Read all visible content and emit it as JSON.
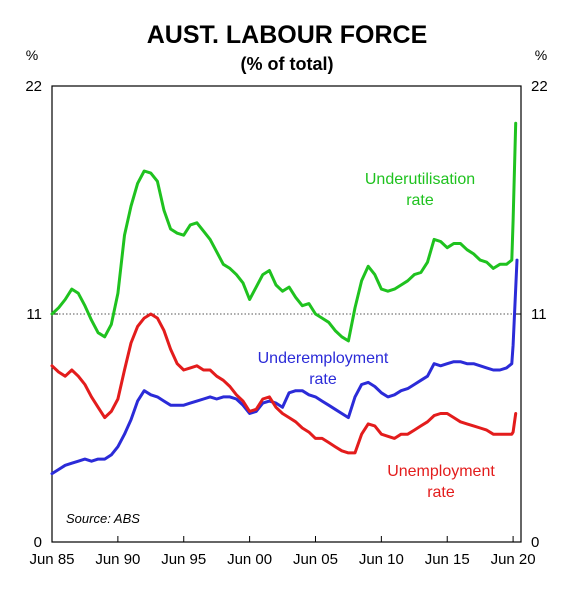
{
  "chart_data": {
    "type": "line",
    "title": "AUST. LABOUR FORCE",
    "subtitle": "(% of total)",
    "y_unit_left": "%",
    "y_unit_right": "%",
    "ylim": [
      0,
      22
    ],
    "yticks": [
      0,
      11,
      22
    ],
    "y_tick_labels": [
      "0",
      "11",
      "22"
    ],
    "xlim": [
      1985.0,
      2020.6
    ],
    "xticks": [
      1985,
      1990,
      1995,
      2000,
      2005,
      2010,
      2015,
      2020
    ],
    "x_tick_labels": [
      "Jun 85",
      "Jun 90",
      "Jun 95",
      "Jun 00",
      "Jun 05",
      "Jun 10",
      "Jun 15",
      "Jun 20"
    ],
    "reference_line": {
      "y": 11,
      "style": "dotted"
    },
    "source": "Source: ABS",
    "grid": false,
    "series": [
      {
        "name": "Underutilisation rate",
        "label_lines": [
          "Underutilisation",
          "rate"
        ],
        "color": "#1fc21f",
        "points": [
          [
            1985.0,
            11.0
          ],
          [
            1985.5,
            11.3
          ],
          [
            1986.0,
            11.7
          ],
          [
            1986.5,
            12.2
          ],
          [
            1987.0,
            12.0
          ],
          [
            1987.5,
            11.4
          ],
          [
            1988.0,
            10.7
          ],
          [
            1988.5,
            10.1
          ],
          [
            1989.0,
            9.9
          ],
          [
            1989.5,
            10.5
          ],
          [
            1990.0,
            12.0
          ],
          [
            1990.5,
            14.8
          ],
          [
            1991.0,
            16.2
          ],
          [
            1991.5,
            17.3
          ],
          [
            1992.0,
            17.9
          ],
          [
            1992.5,
            17.8
          ],
          [
            1993.0,
            17.4
          ],
          [
            1993.5,
            16.0
          ],
          [
            1994.0,
            15.1
          ],
          [
            1994.5,
            14.9
          ],
          [
            1995.0,
            14.8
          ],
          [
            1995.5,
            15.3
          ],
          [
            1996.0,
            15.4
          ],
          [
            1996.5,
            15.0
          ],
          [
            1997.0,
            14.6
          ],
          [
            1997.5,
            14.0
          ],
          [
            1998.0,
            13.4
          ],
          [
            1998.5,
            13.2
          ],
          [
            1999.0,
            12.9
          ],
          [
            1999.5,
            12.5
          ],
          [
            2000.0,
            11.7
          ],
          [
            2000.5,
            12.3
          ],
          [
            2001.0,
            12.9
          ],
          [
            2001.5,
            13.1
          ],
          [
            2002.0,
            12.4
          ],
          [
            2002.5,
            12.1
          ],
          [
            2003.0,
            12.3
          ],
          [
            2003.5,
            11.8
          ],
          [
            2004.0,
            11.4
          ],
          [
            2004.5,
            11.5
          ],
          [
            2005.0,
            11.0
          ],
          [
            2005.5,
            10.8
          ],
          [
            2006.0,
            10.6
          ],
          [
            2006.5,
            10.2
          ],
          [
            2007.0,
            9.9
          ],
          [
            2007.5,
            9.7
          ],
          [
            2008.0,
            11.3
          ],
          [
            2008.5,
            12.6
          ],
          [
            2009.0,
            13.3
          ],
          [
            2009.5,
            12.9
          ],
          [
            2010.0,
            12.2
          ],
          [
            2010.5,
            12.1
          ],
          [
            2011.0,
            12.2
          ],
          [
            2011.5,
            12.4
          ],
          [
            2012.0,
            12.6
          ],
          [
            2012.5,
            12.9
          ],
          [
            2013.0,
            13.0
          ],
          [
            2013.5,
            13.5
          ],
          [
            2014.0,
            14.6
          ],
          [
            2014.5,
            14.5
          ],
          [
            2015.0,
            14.2
          ],
          [
            2015.5,
            14.4
          ],
          [
            2016.0,
            14.4
          ],
          [
            2016.5,
            14.1
          ],
          [
            2017.0,
            13.9
          ],
          [
            2017.5,
            13.6
          ],
          [
            2018.0,
            13.5
          ],
          [
            2018.5,
            13.2
          ],
          [
            2019.0,
            13.4
          ],
          [
            2019.5,
            13.4
          ],
          [
            2019.9,
            13.6
          ],
          [
            2020.0,
            15.5
          ],
          [
            2020.2,
            20.2
          ]
        ]
      },
      {
        "name": "Underemployment rate",
        "label_lines": [
          "Underemployment",
          "rate"
        ],
        "color": "#2b2bd8",
        "points": [
          [
            1985.0,
            3.3
          ],
          [
            1985.5,
            3.5
          ],
          [
            1986.0,
            3.7
          ],
          [
            1986.5,
            3.8
          ],
          [
            1987.0,
            3.9
          ],
          [
            1987.5,
            4.0
          ],
          [
            1988.0,
            3.9
          ],
          [
            1988.5,
            4.0
          ],
          [
            1989.0,
            4.0
          ],
          [
            1989.5,
            4.2
          ],
          [
            1990.0,
            4.6
          ],
          [
            1990.5,
            5.2
          ],
          [
            1991.0,
            5.9
          ],
          [
            1991.5,
            6.8
          ],
          [
            1992.0,
            7.3
          ],
          [
            1992.5,
            7.1
          ],
          [
            1993.0,
            7.0
          ],
          [
            1993.5,
            6.8
          ],
          [
            1994.0,
            6.6
          ],
          [
            1994.5,
            6.6
          ],
          [
            1995.0,
            6.6
          ],
          [
            1995.5,
            6.7
          ],
          [
            1996.0,
            6.8
          ],
          [
            1996.5,
            6.9
          ],
          [
            1997.0,
            7.0
          ],
          [
            1997.5,
            6.9
          ],
          [
            1998.0,
            7.0
          ],
          [
            1998.5,
            7.0
          ],
          [
            1999.0,
            6.9
          ],
          [
            1999.5,
            6.6
          ],
          [
            2000.0,
            6.2
          ],
          [
            2000.5,
            6.3
          ],
          [
            2001.0,
            6.7
          ],
          [
            2001.5,
            6.8
          ],
          [
            2002.0,
            6.7
          ],
          [
            2002.5,
            6.5
          ],
          [
            2003.0,
            7.2
          ],
          [
            2003.5,
            7.3
          ],
          [
            2004.0,
            7.3
          ],
          [
            2004.5,
            7.1
          ],
          [
            2005.0,
            7.0
          ],
          [
            2005.5,
            6.8
          ],
          [
            2006.0,
            6.6
          ],
          [
            2006.5,
            6.4
          ],
          [
            2007.0,
            6.2
          ],
          [
            2007.5,
            6.0
          ],
          [
            2008.0,
            7.0
          ],
          [
            2008.5,
            7.6
          ],
          [
            2009.0,
            7.7
          ],
          [
            2009.5,
            7.5
          ],
          [
            2010.0,
            7.2
          ],
          [
            2010.5,
            7.0
          ],
          [
            2011.0,
            7.1
          ],
          [
            2011.5,
            7.3
          ],
          [
            2012.0,
            7.4
          ],
          [
            2012.5,
            7.6
          ],
          [
            2013.0,
            7.8
          ],
          [
            2013.5,
            8.0
          ],
          [
            2014.0,
            8.6
          ],
          [
            2014.5,
            8.5
          ],
          [
            2015.0,
            8.6
          ],
          [
            2015.5,
            8.7
          ],
          [
            2016.0,
            8.7
          ],
          [
            2016.5,
            8.6
          ],
          [
            2017.0,
            8.6
          ],
          [
            2017.5,
            8.5
          ],
          [
            2018.0,
            8.4
          ],
          [
            2018.5,
            8.3
          ],
          [
            2019.0,
            8.3
          ],
          [
            2019.5,
            8.4
          ],
          [
            2019.9,
            8.6
          ],
          [
            2020.0,
            9.5
          ],
          [
            2020.3,
            13.6
          ]
        ]
      },
      {
        "name": "Unemployment rate",
        "label_lines": [
          "Unemployment",
          "rate"
        ],
        "color": "#e31c1c",
        "points": [
          [
            1985.0,
            8.5
          ],
          [
            1985.5,
            8.2
          ],
          [
            1986.0,
            8.0
          ],
          [
            1986.5,
            8.3
          ],
          [
            1987.0,
            8.0
          ],
          [
            1987.5,
            7.6
          ],
          [
            1988.0,
            7.0
          ],
          [
            1988.5,
            6.5
          ],
          [
            1989.0,
            6.0
          ],
          [
            1989.5,
            6.3
          ],
          [
            1990.0,
            6.9
          ],
          [
            1990.5,
            8.3
          ],
          [
            1991.0,
            9.6
          ],
          [
            1991.5,
            10.4
          ],
          [
            1992.0,
            10.8
          ],
          [
            1992.5,
            11.0
          ],
          [
            1993.0,
            10.8
          ],
          [
            1993.5,
            10.2
          ],
          [
            1994.0,
            9.3
          ],
          [
            1994.5,
            8.6
          ],
          [
            1995.0,
            8.3
          ],
          [
            1995.5,
            8.4
          ],
          [
            1996.0,
            8.5
          ],
          [
            1996.5,
            8.3
          ],
          [
            1997.0,
            8.3
          ],
          [
            1997.5,
            8.0
          ],
          [
            1998.0,
            7.8
          ],
          [
            1998.5,
            7.5
          ],
          [
            1999.0,
            7.1
          ],
          [
            1999.5,
            6.8
          ],
          [
            2000.0,
            6.3
          ],
          [
            2000.5,
            6.4
          ],
          [
            2001.0,
            6.9
          ],
          [
            2001.5,
            7.0
          ],
          [
            2002.0,
            6.5
          ],
          [
            2002.5,
            6.2
          ],
          [
            2003.0,
            6.0
          ],
          [
            2003.5,
            5.8
          ],
          [
            2004.0,
            5.5
          ],
          [
            2004.5,
            5.3
          ],
          [
            2005.0,
            5.0
          ],
          [
            2005.5,
            5.0
          ],
          [
            2006.0,
            4.8
          ],
          [
            2006.5,
            4.6
          ],
          [
            2007.0,
            4.4
          ],
          [
            2007.5,
            4.3
          ],
          [
            2008.0,
            4.3
          ],
          [
            2008.5,
            5.2
          ],
          [
            2009.0,
            5.7
          ],
          [
            2009.5,
            5.6
          ],
          [
            2010.0,
            5.2
          ],
          [
            2010.5,
            5.1
          ],
          [
            2011.0,
            5.0
          ],
          [
            2011.5,
            5.2
          ],
          [
            2012.0,
            5.2
          ],
          [
            2012.5,
            5.4
          ],
          [
            2013.0,
            5.6
          ],
          [
            2013.5,
            5.8
          ],
          [
            2014.0,
            6.1
          ],
          [
            2014.5,
            6.2
          ],
          [
            2015.0,
            6.2
          ],
          [
            2015.5,
            6.0
          ],
          [
            2016.0,
            5.8
          ],
          [
            2016.5,
            5.7
          ],
          [
            2017.0,
            5.6
          ],
          [
            2017.5,
            5.5
          ],
          [
            2018.0,
            5.4
          ],
          [
            2018.5,
            5.2
          ],
          [
            2019.0,
            5.2
          ],
          [
            2019.5,
            5.2
          ],
          [
            2019.9,
            5.2
          ],
          [
            2020.0,
            5.3
          ],
          [
            2020.2,
            6.2
          ]
        ]
      }
    ]
  }
}
